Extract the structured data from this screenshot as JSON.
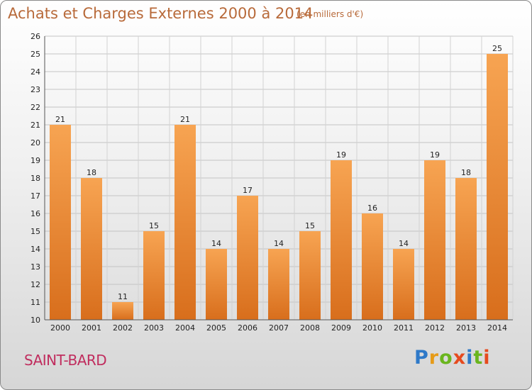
{
  "header": {
    "title": "Achats et Charges Externes 2000 à 2014",
    "subtitle": "(en milliers d'€)"
  },
  "commune": "SAINT-BARD",
  "logo": {
    "text": "Proxiti"
  },
  "colors": {
    "bar_light": "#f7a452",
    "bar_dark": "#d86e1c",
    "title": "#b86a3a",
    "commune": "#c02d5e"
  },
  "chart_data": {
    "type": "bar",
    "title": "Achats et Charges Externes 2000 à 2014",
    "categories": [
      "2000",
      "2001",
      "2002",
      "2003",
      "2004",
      "2005",
      "2006",
      "2007",
      "2008",
      "2009",
      "2010",
      "2011",
      "2012",
      "2013",
      "2014"
    ],
    "values": [
      21,
      18,
      11,
      15,
      21,
      14,
      17,
      14,
      15,
      19,
      16,
      14,
      19,
      18,
      25
    ],
    "ylim": [
      10,
      26
    ],
    "yticks": [
      10,
      11,
      12,
      13,
      14,
      15,
      16,
      17,
      18,
      19,
      20,
      21,
      22,
      23,
      24,
      25,
      26
    ],
    "grid": true,
    "xlabel": "",
    "ylabel": ""
  }
}
